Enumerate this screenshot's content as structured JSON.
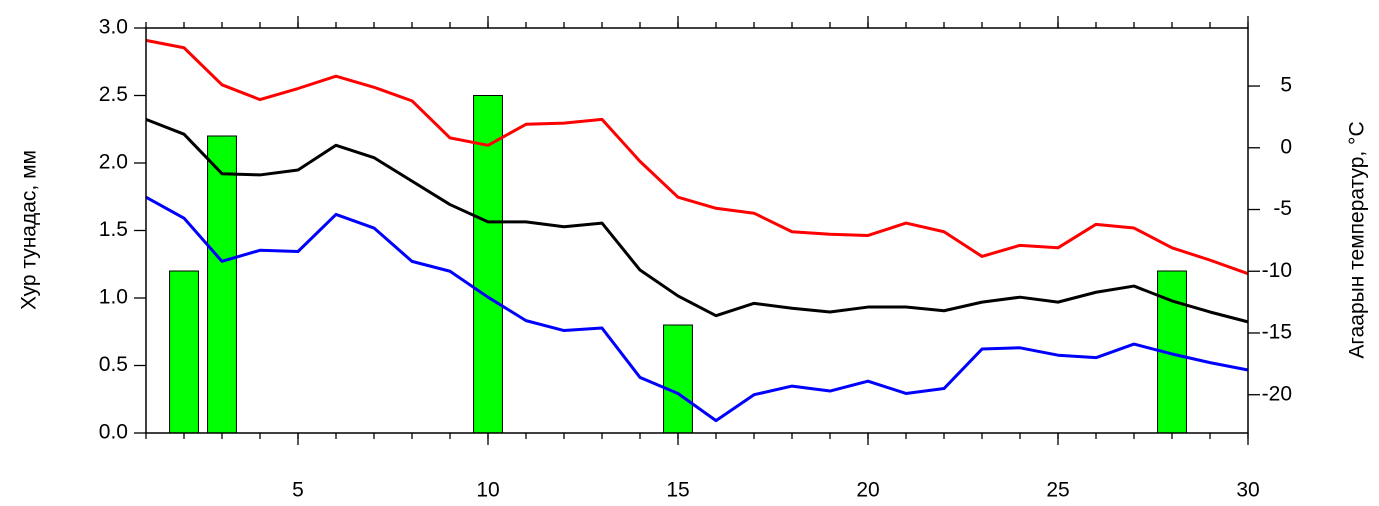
{
  "chart_data": {
    "type": "bar",
    "y_label": "Хур тунадас, мм",
    "y2_label": "Агаарын температур, °C",
    "x": [
      1,
      2,
      3,
      4,
      5,
      6,
      7,
      8,
      9,
      10,
      11,
      12,
      13,
      14,
      15,
      16,
      17,
      18,
      19,
      20,
      21,
      22,
      23,
      24,
      25,
      26,
      27,
      28,
      29,
      30
    ],
    "xlim": [
      1,
      30
    ],
    "xticks": [
      5,
      10,
      15,
      20,
      25,
      30
    ],
    "ylim": [
      0,
      3
    ],
    "yticks": [
      {
        "value": 0,
        "label": "0.0"
      },
      {
        "value": 0.5,
        "label": "0.5"
      },
      {
        "value": 1,
        "label": "1.0"
      },
      {
        "value": 1.5,
        "label": "1.5"
      },
      {
        "value": 2,
        "label": "2.0"
      },
      {
        "value": 2.5,
        "label": "2.5"
      },
      {
        "value": 3,
        "label": "3.0"
      }
    ],
    "y2lim": [
      -23.1,
      9.7
    ],
    "y2ticks": [
      -20,
      -15,
      -10,
      -5,
      0,
      5
    ],
    "series": [
      {
        "type": "bar",
        "color": "#00ff00",
        "values": [
          0,
          1.2,
          2.2,
          0,
          0,
          0,
          0,
          0,
          0,
          2.5,
          0,
          0,
          0,
          0,
          0.8,
          0,
          0,
          0,
          0,
          0,
          0,
          0,
          0,
          0,
          0,
          0,
          0,
          1.2,
          0,
          0
        ]
      },
      {
        "type": "line",
        "axis": "y2",
        "color": "#ff0000",
        "values": [
          8.7,
          8.1,
          5.1,
          3.9,
          4.8,
          5.8,
          4.9,
          3.8,
          0.8,
          0.2,
          1.9,
          2.0,
          2.3,
          -1.1,
          -4.0,
          -4.9,
          -5.3,
          -6.8,
          -7.0,
          -7.1,
          -6.1,
          -6.8,
          -8.8,
          -7.9,
          -8.1,
          -6.2,
          -6.5,
          -8.1,
          -9.1,
          -10.2
        ]
      },
      {
        "type": "line",
        "axis": "y2",
        "color": "#000000",
        "values": [
          2.3,
          1.1,
          -2.1,
          -2.2,
          -1.8,
          0.2,
          -0.8,
          -2.7,
          -4.6,
          -6.0,
          -6.0,
          -6.4,
          -6.1,
          -9.9,
          -12.0,
          -13.6,
          -12.6,
          -13.0,
          -13.3,
          -12.9,
          -12.9,
          -13.2,
          -12.5,
          -12.1,
          -12.5,
          -11.7,
          -11.2,
          -12.4,
          -13.3,
          -14.1
        ]
      },
      {
        "type": "line",
        "axis": "y2",
        "color": "#0000ff",
        "values": [
          -4.0,
          -5.7,
          -9.2,
          -8.3,
          -8.4,
          -5.4,
          -6.5,
          -9.2,
          -10.0,
          -12.1,
          -14.0,
          -14.8,
          -14.6,
          -18.6,
          -19.9,
          -22.1,
          -20.0,
          -19.3,
          -19.7,
          -18.9,
          -19.9,
          -19.5,
          -16.3,
          -16.2,
          -16.8,
          -17.0,
          -15.9,
          -16.7,
          -17.4,
          -18.0
        ]
      }
    ]
  }
}
